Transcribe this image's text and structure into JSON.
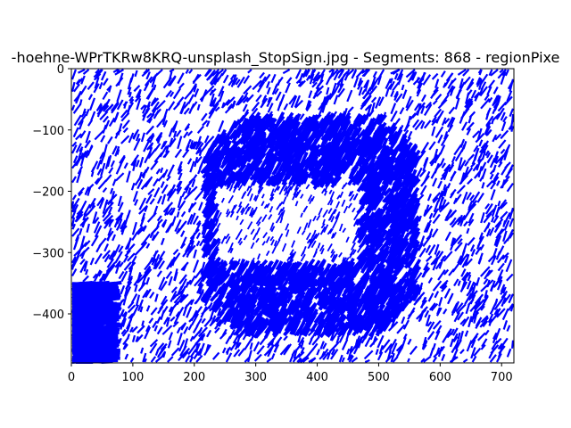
{
  "chart_data": {
    "type": "scatter",
    "title": "-hoehne-WPrTKRw8KRQ-unsplash_StopSign.jpg - Segments: 868 - regionPixe",
    "xlabel": "",
    "ylabel": "",
    "xlim": [
      0,
      720
    ],
    "ylim": [
      -480,
      0
    ],
    "x_ticks": [
      "0",
      "100",
      "200",
      "300",
      "400",
      "500",
      "600",
      "700"
    ],
    "y_ticks": [
      "0",
      "−100",
      "−200",
      "−300",
      "−400"
    ],
    "x_tick_values": [
      0,
      100,
      200,
      300,
      400,
      500,
      600,
      700
    ],
    "y_tick_values": [
      0,
      -100,
      -200,
      -300,
      -400
    ],
    "segment_count": 868,
    "segment_color": "#0000ff",
    "grid": false,
    "legend": "none"
  }
}
